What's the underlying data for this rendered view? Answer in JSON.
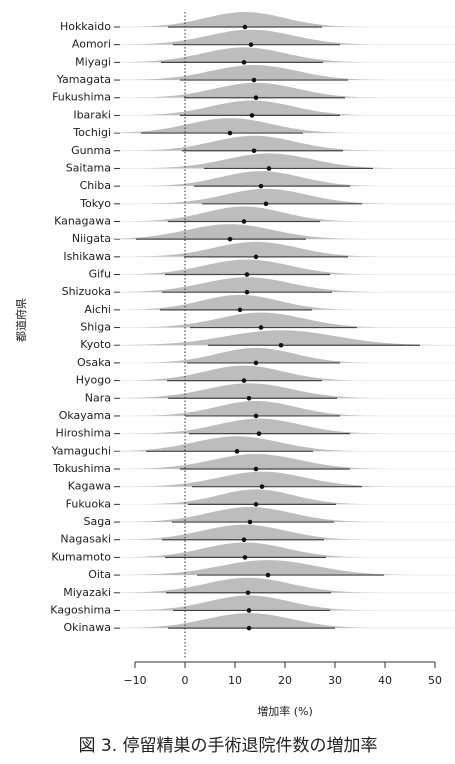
{
  "chart_data": {
    "type": "forest",
    "x_label": "増加率 (%)",
    "y_label": "都道府県",
    "caption": "図 3. 停留精巣の手術退院件数の増加率",
    "categories": [
      "Hokkaido",
      "Aomori",
      "Miyagi",
      "Yamagata",
      "Fukushima",
      "Ibaraki",
      "Tochigi",
      "Gunma",
      "Saitama",
      "Chiba",
      "Tokyo",
      "Kanagawa",
      "Niigata",
      "Ishikawa",
      "Gifu",
      "Shizuoka",
      "Aichi",
      "Shiga",
      "Kyoto",
      "Osaka",
      "Hyogo",
      "Nara",
      "Okayama",
      "Hiroshima",
      "Yamaguchi",
      "Tokushima",
      "Kagawa",
      "Fukuoka",
      "Saga",
      "Nagasaki",
      "Kumamoto",
      "Oita",
      "Miyazaki",
      "Kagoshima",
      "Okinawa"
    ],
    "values": [
      12,
      13.2,
      11.8,
      13.8,
      14.2,
      13.4,
      9,
      13.8,
      16.8,
      15.2,
      16.2,
      11.8,
      9,
      14.2,
      12.4,
      12.4,
      11,
      15.2,
      19.2,
      14.2,
      11.8,
      12.8,
      14.2,
      14.8,
      10.4,
      14.2,
      15.4,
      14.2,
      13,
      11.8,
      12,
      16.6,
      12.6,
      12.8,
      12.8
    ],
    "lower": [
      -3.4,
      -2.4,
      -4.8,
      -1,
      -0.2,
      -1,
      -8.8,
      -0.6,
      3.8,
      1.8,
      3.4,
      -3.4,
      -9.8,
      -0.2,
      -4,
      -4.6,
      -5,
      1,
      4.6,
      0.4,
      -3.6,
      -3.4,
      0,
      0.8,
      -7.8,
      -1,
      1.4,
      0.6,
      -2.6,
      -4.6,
      -4,
      2.4,
      -3.8,
      -2.4,
      -3.4
    ],
    "upper": [
      27.4,
      31,
      27.6,
      32.6,
      32,
      31,
      23.6,
      31.6,
      37.6,
      33,
      35.4,
      27,
      24.2,
      32.6,
      29,
      29.4,
      25.4,
      34.4,
      47,
      31,
      27.4,
      30.4,
      31,
      33,
      25.6,
      33,
      35.4,
      30.2,
      29.8,
      27.8,
      28.2,
      39.8,
      29.2,
      29,
      30
    ],
    "reference_line": 0,
    "point_color": "#111111",
    "density_color": "#bdbdbd",
    "interval_color": "#444444",
    "xlim": [
      -14,
      54
    ],
    "xticks": [
      {
        "value": -10,
        "label": "−10"
      },
      0,
      10,
      20,
      30,
      40,
      50
    ]
  }
}
